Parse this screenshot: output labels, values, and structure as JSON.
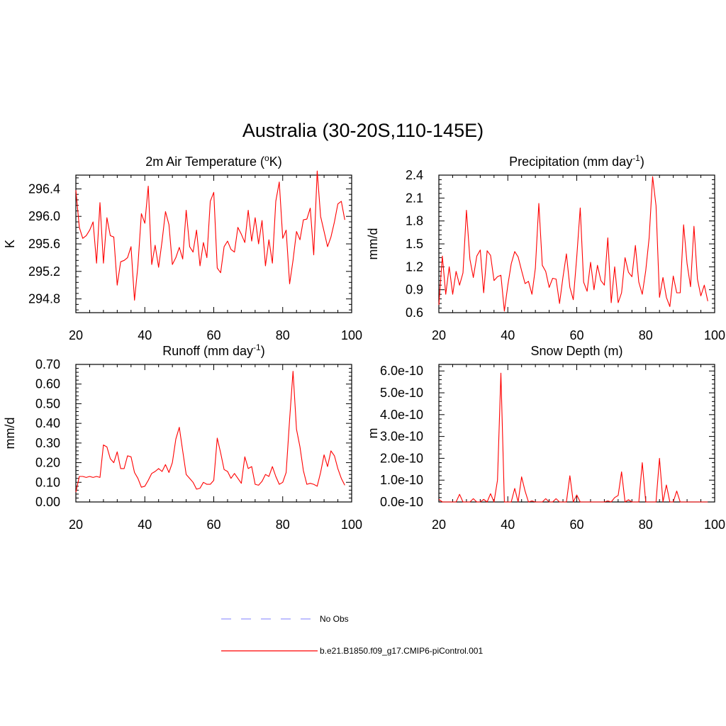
{
  "figure": {
    "title": "Australia (30-20S,110-145E)"
  },
  "chart_data": [
    {
      "type": "line",
      "title_main": "2m Air Temperature (",
      "title_sup": "o",
      "title_end": "K)",
      "ylabel": "K",
      "xlim": [
        20,
        100
      ],
      "ylim": [
        294.6,
        296.6
      ],
      "xticks": [
        20,
        40,
        60,
        80,
        100
      ],
      "yticks": [
        294.8,
        295.2,
        295.6,
        296.0,
        296.4
      ],
      "ytick_labels": [
        "294.8",
        "295.2",
        "295.6",
        "296.0",
        "296.4"
      ],
      "x": [
        20,
        21,
        22,
        23,
        24,
        25,
        26,
        27,
        28,
        29,
        30,
        31,
        32,
        33,
        34,
        35,
        36,
        37,
        38,
        39,
        40,
        41,
        42,
        43,
        44,
        45,
        46,
        47,
        48,
        49,
        50,
        51,
        52,
        53,
        54,
        55,
        56,
        57,
        58,
        59,
        60,
        61,
        62,
        63,
        64,
        65,
        66,
        67,
        68,
        69,
        70,
        71,
        72,
        73,
        74,
        75,
        76,
        77,
        78,
        79,
        80,
        81,
        82,
        83,
        84,
        85,
        86,
        87,
        88,
        89,
        90,
        91,
        92,
        93,
        94,
        95,
        96,
        97,
        98
      ],
      "series": [
        {
          "color": "#ff0000",
          "values": [
            296.38,
            295.84,
            295.68,
            295.72,
            295.8,
            295.92,
            295.32,
            296.2,
            295.32,
            295.98,
            295.72,
            295.7,
            295.0,
            295.34,
            295.36,
            295.4,
            295.56,
            294.78,
            295.28,
            296.04,
            295.9,
            296.44,
            295.3,
            295.58,
            295.26,
            295.64,
            296.07,
            295.88,
            295.3,
            295.4,
            295.55,
            295.38,
            296.09,
            295.56,
            295.48,
            295.8,
            295.28,
            295.62,
            295.4,
            296.22,
            296.35,
            295.25,
            295.18,
            295.56,
            295.64,
            295.52,
            295.48,
            295.84,
            295.74,
            295.62,
            296.09,
            295.64,
            295.98,
            295.6,
            295.94,
            295.28,
            295.66,
            295.32,
            296.22,
            296.5,
            295.68,
            295.8,
            295.02,
            295.36,
            295.78,
            295.66,
            295.95,
            295.96,
            296.12,
            295.44,
            296.66,
            296.0,
            295.78,
            295.56,
            295.7,
            295.92,
            296.18,
            296.22,
            295.95
          ]
        }
      ]
    },
    {
      "type": "line",
      "title_main": "Precipitation (mm day",
      "title_sup": "-1",
      "title_end": ")",
      "ylabel": "mm/d",
      "xlim": [
        20,
        100
      ],
      "ylim": [
        0.6,
        2.4
      ],
      "xticks": [
        20,
        40,
        60,
        80,
        100
      ],
      "yticks": [
        0.6,
        0.9,
        1.2,
        1.5,
        1.8,
        2.1,
        2.4
      ],
      "ytick_labels": [
        "0.6",
        "0.9",
        "1.2",
        "1.5",
        "1.8",
        "2.1",
        "2.4"
      ],
      "x": [
        20,
        21,
        22,
        23,
        24,
        25,
        26,
        27,
        28,
        29,
        30,
        31,
        32,
        33,
        34,
        35,
        36,
        37,
        38,
        39,
        40,
        41,
        42,
        43,
        44,
        45,
        46,
        47,
        48,
        49,
        50,
        51,
        52,
        53,
        54,
        55,
        56,
        57,
        58,
        59,
        60,
        61,
        62,
        63,
        64,
        65,
        66,
        67,
        68,
        69,
        70,
        71,
        72,
        73,
        74,
        75,
        76,
        77,
        78,
        79,
        80,
        81,
        82,
        83,
        84,
        85,
        86,
        87,
        88,
        89,
        90,
        91,
        92,
        93,
        94,
        95,
        96,
        97,
        98
      ],
      "series": [
        {
          "color": "#ff0000",
          "values": [
            0.7,
            1.34,
            0.84,
            1.2,
            0.84,
            1.14,
            0.96,
            1.12,
            1.94,
            1.3,
            1.06,
            1.34,
            1.42,
            0.86,
            1.41,
            1.35,
            1.02,
            1.07,
            1.09,
            0.62,
            0.96,
            1.24,
            1.4,
            1.33,
            1.15,
            0.98,
            1.01,
            0.84,
            1.18,
            2.03,
            1.22,
            1.14,
            0.93,
            1.05,
            1.04,
            0.72,
            1.06,
            1.37,
            0.93,
            0.77,
            1.33,
            1.97,
            1.0,
            0.88,
            1.26,
            0.9,
            1.22,
            1.02,
            0.96,
            1.58,
            0.73,
            1.2,
            0.73,
            0.86,
            1.32,
            1.13,
            1.07,
            1.48,
            1.0,
            0.84,
            1.15,
            1.58,
            2.38,
            2.0,
            0.8,
            1.06,
            0.8,
            0.68,
            1.08,
            0.86,
            0.86,
            1.75,
            1.24,
            0.94,
            1.73,
            1.04,
            0.82,
            0.96,
            0.75
          ]
        }
      ]
    },
    {
      "type": "line",
      "title_main": "Runoff (mm day",
      "title_sup": "-1",
      "title_end": ")",
      "ylabel": "mm/d",
      "xlim": [
        20,
        100
      ],
      "ylim": [
        0.0,
        0.7
      ],
      "xticks": [
        20,
        40,
        60,
        80,
        100
      ],
      "yticks": [
        0.0,
        0.1,
        0.2,
        0.3,
        0.4,
        0.5,
        0.6,
        0.7
      ],
      "ytick_labels": [
        "0.00",
        "0.10",
        "0.20",
        "0.30",
        "0.40",
        "0.50",
        "0.60",
        "0.70"
      ],
      "x": [
        20,
        21,
        22,
        23,
        24,
        25,
        26,
        27,
        28,
        29,
        30,
        31,
        32,
        33,
        34,
        35,
        36,
        37,
        38,
        39,
        40,
        41,
        42,
        43,
        44,
        45,
        46,
        47,
        48,
        49,
        50,
        51,
        52,
        53,
        54,
        55,
        56,
        57,
        58,
        59,
        60,
        61,
        62,
        63,
        64,
        65,
        66,
        67,
        68,
        69,
        70,
        71,
        72,
        73,
        74,
        75,
        76,
        77,
        78,
        79,
        80,
        81,
        82,
        83,
        84,
        85,
        86,
        87,
        88,
        89,
        90,
        91,
        92,
        93,
        94,
        95,
        96,
        97,
        98
      ],
      "series": [
        {
          "color": "#ff0000",
          "values": [
            0.05,
            0.13,
            0.13,
            0.125,
            0.13,
            0.125,
            0.13,
            0.125,
            0.29,
            0.28,
            0.22,
            0.2,
            0.255,
            0.17,
            0.17,
            0.235,
            0.23,
            0.15,
            0.12,
            0.075,
            0.08,
            0.11,
            0.145,
            0.155,
            0.17,
            0.155,
            0.19,
            0.15,
            0.2,
            0.32,
            0.38,
            0.26,
            0.14,
            0.12,
            0.1,
            0.065,
            0.07,
            0.1,
            0.09,
            0.09,
            0.11,
            0.325,
            0.25,
            0.165,
            0.155,
            0.12,
            0.145,
            0.12,
            0.095,
            0.23,
            0.17,
            0.18,
            0.09,
            0.085,
            0.105,
            0.14,
            0.13,
            0.18,
            0.13,
            0.09,
            0.1,
            0.15,
            0.42,
            0.665,
            0.37,
            0.28,
            0.16,
            0.09,
            0.095,
            0.09,
            0.08,
            0.15,
            0.24,
            0.18,
            0.26,
            0.235,
            0.17,
            0.12,
            0.085
          ]
        }
      ]
    },
    {
      "type": "line",
      "title_main": "Snow Depth (m)",
      "title_sup": "",
      "title_end": "",
      "ylabel": "m",
      "xlim": [
        20,
        100
      ],
      "ylim": [
        0.0,
        6.3e-10
      ],
      "xticks": [
        20,
        40,
        60,
        80,
        100
      ],
      "yticks": [
        0.0,
        1e-10,
        2e-10,
        3e-10,
        4e-10,
        5e-10,
        6e-10
      ],
      "ytick_labels": [
        "0.0e-10",
        "1.0e-10",
        "2.0e-10",
        "3.0e-10",
        "4.0e-10",
        "5.0e-10",
        "6.0e-10"
      ],
      "x": [
        20,
        21,
        22,
        23,
        24,
        25,
        26,
        27,
        28,
        29,
        30,
        31,
        32,
        33,
        34,
        35,
        36,
        37,
        38,
        39,
        40,
        41,
        42,
        43,
        44,
        45,
        46,
        47,
        48,
        49,
        50,
        51,
        52,
        53,
        54,
        55,
        56,
        57,
        58,
        59,
        60,
        61,
        62,
        63,
        64,
        65,
        66,
        67,
        68,
        69,
        70,
        71,
        72,
        73,
        74,
        75,
        76,
        77,
        78,
        79,
        80,
        81,
        82,
        83,
        84,
        85,
        86,
        87,
        88,
        89,
        90,
        91,
        92,
        93,
        94,
        95,
        96,
        97,
        98
      ],
      "series": [
        {
          "color": "#ff0000",
          "values": [
            1.2e-11,
            0,
            0,
            0,
            0,
            0,
            3.5e-11,
            0,
            0,
            0,
            1.5e-11,
            0,
            0,
            1.2e-11,
            0,
            3.8e-11,
            0,
            1e-10,
            5.9e-10,
            0,
            0,
            0,
            6.2e-11,
            0,
            1.15e-10,
            5e-11,
            0,
            5e-12,
            0,
            0,
            0,
            1.5e-11,
            0,
            0,
            1.5e-11,
            0,
            0,
            0,
            1.2e-10,
            0,
            3.2e-11,
            0,
            0,
            0,
            0,
            0,
            0,
            0,
            0,
            5e-12,
            0,
            2e-11,
            3e-11,
            1.38e-10,
            0,
            1e-11,
            0,
            0,
            0,
            1.8e-10,
            0,
            0,
            0,
            0,
            2e-10,
            0,
            7.8e-11,
            0,
            0,
            5e-11,
            0,
            0,
            0,
            0,
            0,
            0,
            0,
            0,
            0
          ]
        }
      ]
    }
  ],
  "legend": {
    "items": [
      {
        "label": "No Obs",
        "color": "#9999ff",
        "dash": "dashed"
      },
      {
        "label": "b.e21.B1850.f09_g17.CMIP6-piControl.001",
        "color": "#ff0000",
        "dash": "solid"
      }
    ]
  }
}
